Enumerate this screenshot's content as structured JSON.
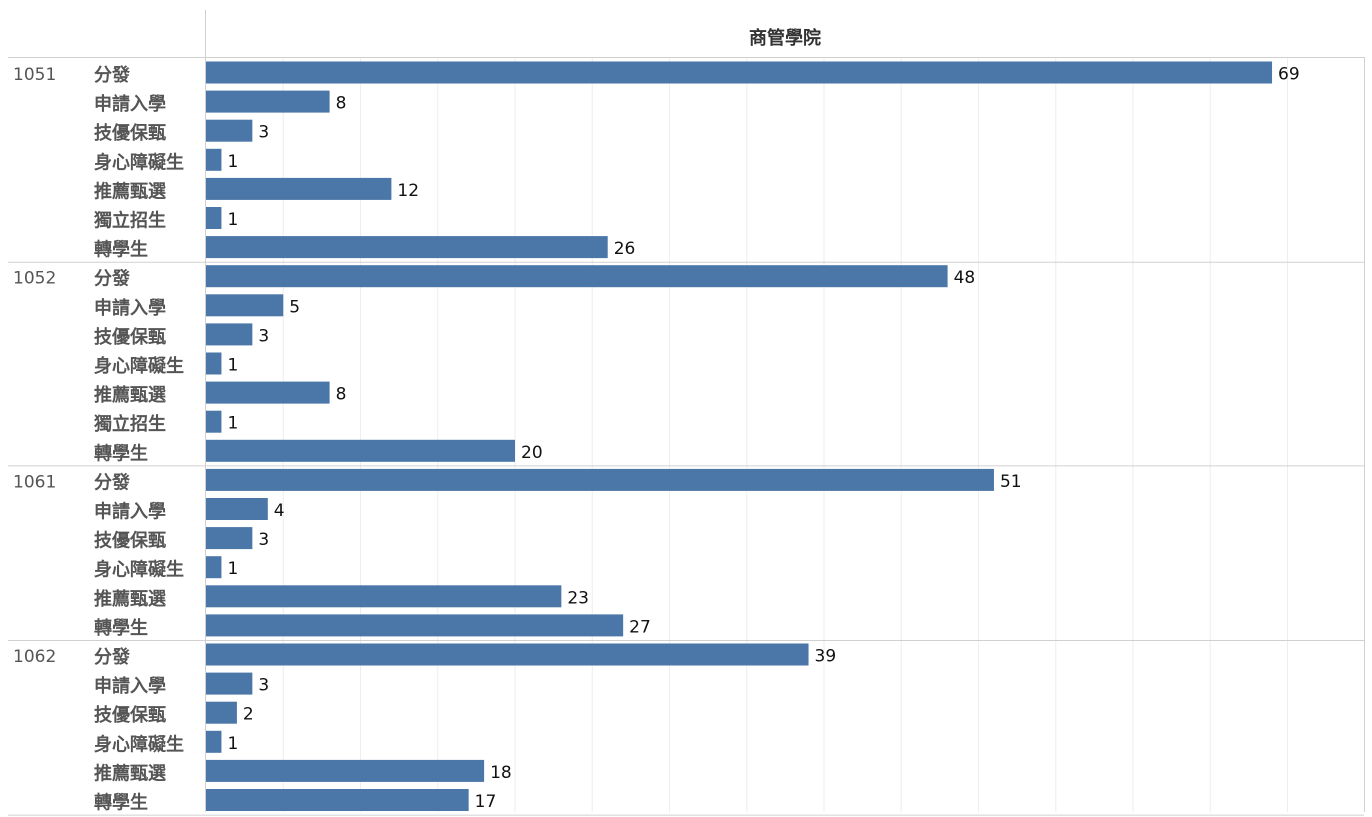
{
  "chart_data": {
    "type": "bar",
    "orientation": "horizontal",
    "header": "商管學院",
    "bar_color": "#4a76a8",
    "xlim": [
      0,
      70
    ],
    "grid": true,
    "groups": [
      {
        "year": "1051",
        "items": [
          {
            "category": "分發",
            "value": 69
          },
          {
            "category": "申請入學",
            "value": 8
          },
          {
            "category": "技優保甄",
            "value": 3
          },
          {
            "category": "身心障礙生",
            "value": 1
          },
          {
            "category": "推薦甄選",
            "value": 12
          },
          {
            "category": "獨立招生",
            "value": 1
          },
          {
            "category": "轉學生",
            "value": 26
          }
        ]
      },
      {
        "year": "1052",
        "items": [
          {
            "category": "分發",
            "value": 48
          },
          {
            "category": "申請入學",
            "value": 5
          },
          {
            "category": "技優保甄",
            "value": 3
          },
          {
            "category": "身心障礙生",
            "value": 1
          },
          {
            "category": "推薦甄選",
            "value": 8
          },
          {
            "category": "獨立招生",
            "value": 1
          },
          {
            "category": "轉學生",
            "value": 20
          }
        ]
      },
      {
        "year": "1061",
        "items": [
          {
            "category": "分發",
            "value": 51
          },
          {
            "category": "申請入學",
            "value": 4
          },
          {
            "category": "技優保甄",
            "value": 3
          },
          {
            "category": "身心障礙生",
            "value": 1
          },
          {
            "category": "推薦甄選",
            "value": 23
          },
          {
            "category": "轉學生",
            "value": 27
          }
        ]
      },
      {
        "year": "1062",
        "items": [
          {
            "category": "分發",
            "value": 39
          },
          {
            "category": "申請入學",
            "value": 3
          },
          {
            "category": "技優保甄",
            "value": 2
          },
          {
            "category": "身心障礙生",
            "value": 1
          },
          {
            "category": "推薦甄選",
            "value": 18
          },
          {
            "category": "轉學生",
            "value": 17
          }
        ]
      }
    ]
  }
}
